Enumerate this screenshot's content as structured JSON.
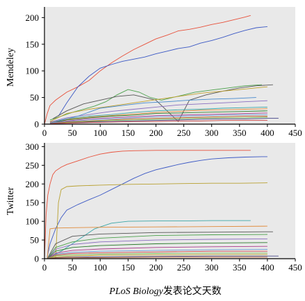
{
  "xlabel_italic": "PLoS Biology",
  "xlabel_rest": "发表论文天数",
  "chart_data": [
    {
      "type": "line",
      "ylabel": "Mendeley",
      "xlim": [
        0,
        450
      ],
      "ylim": [
        0,
        220
      ],
      "xticks": [
        0,
        50,
        100,
        150,
        200,
        250,
        300,
        350,
        400,
        450
      ],
      "yticks": [
        0,
        50,
        100,
        150,
        200
      ],
      "grid": false,
      "series": [
        {
          "color": "#e8503a",
          "x": [
            0,
            5,
            10,
            20,
            40,
            60,
            80,
            100,
            120,
            140,
            160,
            180,
            200,
            220,
            240,
            260,
            280,
            300,
            320,
            340,
            360,
            370
          ],
          "y": [
            0,
            20,
            35,
            45,
            60,
            70,
            82,
            100,
            115,
            128,
            140,
            150,
            160,
            167,
            175,
            178,
            182,
            187,
            191,
            196,
            201,
            204
          ]
        },
        {
          "color": "#3b58c4",
          "x": [
            25,
            40,
            60,
            80,
            100,
            120,
            140,
            160,
            180,
            200,
            220,
            240,
            260,
            280,
            300,
            320,
            340,
            360,
            380,
            400
          ],
          "y": [
            15,
            40,
            70,
            90,
            105,
            112,
            118,
            122,
            126,
            132,
            137,
            142,
            145,
            152,
            157,
            163,
            170,
            176,
            181,
            183
          ]
        },
        {
          "color": "#4aa04a",
          "x": [
            10,
            30,
            50,
            70,
            90,
            110,
            130,
            150,
            170,
            190,
            210,
            230,
            250,
            270,
            300,
            330,
            360,
            390
          ],
          "y": [
            8,
            15,
            22,
            28,
            34,
            42,
            55,
            65,
            60,
            50,
            45,
            50,
            55,
            60,
            64,
            68,
            72,
            74
          ]
        },
        {
          "color": "#555555",
          "x": [
            15,
            40,
            70,
            100,
            130,
            160,
            180,
            200,
            220,
            240,
            260,
            290,
            320,
            350,
            380,
            410
          ],
          "y": [
            10,
            25,
            38,
            45,
            52,
            55,
            50,
            45,
            25,
            5,
            45,
            55,
            62,
            68,
            72,
            74
          ]
        },
        {
          "color": "#c0a02a",
          "x": [
            10,
            40,
            80,
            120,
            160,
            200,
            240,
            280,
            320,
            360,
            400
          ],
          "y": [
            5,
            20,
            28,
            34,
            40,
            46,
            52,
            58,
            62,
            66,
            70
          ]
        },
        {
          "color": "#8a6ec0",
          "x": [
            10,
            40,
            80,
            120,
            160,
            200,
            240,
            280,
            320,
            360,
            400
          ],
          "y": [
            4,
            12,
            18,
            24,
            28,
            32,
            36,
            38,
            40,
            42,
            44
          ]
        },
        {
          "color": "#3aa6a6",
          "x": [
            10,
            40,
            80,
            120,
            160,
            200,
            240,
            280,
            320,
            360,
            400
          ],
          "y": [
            3,
            10,
            15,
            18,
            22,
            25,
            27,
            28,
            30,
            31,
            32
          ]
        },
        {
          "color": "#e08a3a",
          "x": [
            10,
            40,
            80,
            120,
            160,
            200,
            240,
            280,
            320,
            360,
            400
          ],
          "y": [
            3,
            9,
            13,
            16,
            19,
            22,
            24,
            26,
            27,
            28,
            29
          ]
        },
        {
          "color": "#2a7a2a",
          "x": [
            10,
            40,
            80,
            120,
            160,
            200,
            240,
            280,
            320,
            360,
            400
          ],
          "y": [
            2,
            8,
            12,
            15,
            17,
            20,
            21,
            22,
            23,
            24,
            25
          ]
        },
        {
          "color": "#aa3a8a",
          "x": [
            10,
            40,
            80,
            120,
            160,
            200,
            240,
            280,
            320,
            360,
            400
          ],
          "y": [
            2,
            6,
            10,
            12,
            14,
            16,
            17,
            18,
            19,
            20,
            21
          ]
        },
        {
          "color": "#6a9ad4",
          "x": [
            10,
            40,
            80,
            120,
            160,
            200,
            240,
            280,
            320,
            360,
            400
          ],
          "y": [
            2,
            5,
            8,
            10,
            12,
            14,
            15,
            16,
            17,
            18,
            18
          ]
        },
        {
          "color": "#b85a2a",
          "x": [
            10,
            40,
            80,
            120,
            160,
            200,
            240,
            280,
            320,
            360,
            400
          ],
          "y": [
            1,
            4,
            6,
            8,
            10,
            11,
            12,
            13,
            14,
            15,
            15
          ]
        },
        {
          "color": "#7ab84a",
          "x": [
            10,
            40,
            80,
            120,
            160,
            200,
            240,
            280,
            320,
            360,
            400
          ],
          "y": [
            1,
            3,
            5,
            7,
            8,
            9,
            10,
            11,
            12,
            12,
            13
          ]
        },
        {
          "color": "#444488",
          "x": [
            10,
            40,
            80,
            120,
            160,
            200,
            240,
            280,
            320,
            360,
            400,
            420
          ],
          "y": [
            1,
            2,
            4,
            5,
            6,
            7,
            8,
            9,
            10,
            10,
            11,
            11
          ]
        },
        {
          "color": "#cc4444",
          "x": [
            10,
            40,
            80,
            120,
            160,
            200,
            240,
            280,
            320,
            360,
            400
          ],
          "y": [
            1,
            2,
            3,
            4,
            5,
            5,
            6,
            6,
            7,
            7,
            7
          ]
        },
        {
          "color": "#4488cc",
          "x": [
            10,
            60,
            100,
            140,
            180,
            220,
            260,
            300,
            340,
            380
          ],
          "y": [
            2,
            15,
            30,
            35,
            40,
            42,
            45,
            47,
            48,
            50
          ]
        }
      ]
    },
    {
      "type": "line",
      "ylabel": "Twitter",
      "xlim": [
        0,
        450
      ],
      "ylim": [
        0,
        310
      ],
      "xticks": [
        0,
        50,
        100,
        150,
        200,
        250,
        300,
        350,
        400,
        450
      ],
      "yticks": [
        0,
        50,
        100,
        150,
        200,
        250,
        300
      ],
      "grid": false,
      "series": [
        {
          "color": "#e8503a",
          "x": [
            0,
            3,
            6,
            10,
            15,
            20,
            30,
            40,
            60,
            80,
            100,
            120,
            140,
            160,
            200,
            260,
            300,
            370
          ],
          "y": [
            0,
            120,
            170,
            200,
            225,
            235,
            245,
            252,
            262,
            272,
            280,
            285,
            288,
            289,
            290,
            290,
            290,
            290
          ]
        },
        {
          "color": "#3b58c4",
          "x": [
            5,
            10,
            20,
            30,
            40,
            60,
            80,
            100,
            120,
            140,
            160,
            180,
            200,
            220,
            240,
            260,
            280,
            300,
            330,
            360,
            390,
            400
          ],
          "y": [
            5,
            40,
            80,
            110,
            130,
            145,
            158,
            170,
            185,
            200,
            215,
            228,
            238,
            245,
            252,
            258,
            263,
            267,
            270,
            272,
            273,
            273
          ]
        },
        {
          "color": "#b8a030",
          "x": [
            20,
            25,
            30,
            40,
            60,
            100,
            150,
            200,
            250,
            300,
            350,
            400
          ],
          "y": [
            0,
            150,
            185,
            193,
            195,
            197,
            199,
            200,
            201,
            202,
            202,
            203
          ]
        },
        {
          "color": "#3aa6a6",
          "x": [
            10,
            30,
            60,
            90,
            120,
            150,
            200,
            250,
            300,
            350,
            370
          ],
          "y": [
            5,
            20,
            50,
            80,
            95,
            100,
            101,
            101,
            102,
            102,
            102
          ]
        },
        {
          "color": "#e08a3a",
          "x": [
            5,
            10,
            20,
            50,
            100,
            200,
            300,
            400
          ],
          "y": [
            0,
            80,
            82,
            83,
            84,
            85,
            86,
            87
          ]
        },
        {
          "color": "#555555",
          "x": [
            5,
            20,
            50,
            100,
            200,
            300,
            400,
            410
          ],
          "y": [
            0,
            40,
            60,
            66,
            70,
            71,
            72,
            72
          ]
        },
        {
          "color": "#4aa04a",
          "x": [
            5,
            20,
            50,
            100,
            200,
            300,
            400
          ],
          "y": [
            0,
            30,
            45,
            55,
            62,
            64,
            65
          ]
        },
        {
          "color": "#8a6ec0",
          "x": [
            5,
            20,
            50,
            100,
            200,
            300,
            400
          ],
          "y": [
            0,
            25,
            38,
            45,
            50,
            52,
            53
          ]
        },
        {
          "color": "#2a7a2a",
          "x": [
            5,
            20,
            50,
            100,
            200,
            300,
            400
          ],
          "y": [
            0,
            20,
            30,
            35,
            40,
            42,
            43
          ]
        },
        {
          "color": "#aa3a8a",
          "x": [
            5,
            20,
            50,
            100,
            200,
            300,
            400
          ],
          "y": [
            0,
            15,
            22,
            26,
            30,
            32,
            33
          ]
        },
        {
          "color": "#6a9ad4",
          "x": [
            5,
            20,
            50,
            100,
            200,
            300,
            400
          ],
          "y": [
            0,
            12,
            17,
            20,
            22,
            24,
            25
          ]
        },
        {
          "color": "#cc4444",
          "x": [
            5,
            20,
            50,
            100,
            200,
            300,
            400
          ],
          "y": [
            0,
            10,
            14,
            16,
            18,
            20,
            20
          ]
        },
        {
          "color": "#7ab84a",
          "x": [
            5,
            20,
            50,
            100,
            200,
            300,
            400
          ],
          "y": [
            0,
            8,
            10,
            12,
            14,
            15,
            15
          ]
        },
        {
          "color": "#c0a02a",
          "x": [
            5,
            20,
            50,
            100,
            200,
            300,
            400
          ],
          "y": [
            0,
            5,
            7,
            9,
            10,
            11,
            11
          ]
        },
        {
          "color": "#444488",
          "x": [
            5,
            20,
            50,
            100,
            200,
            300,
            400,
            420
          ],
          "y": [
            0,
            3,
            4,
            5,
            6,
            7,
            7,
            7
          ]
        },
        {
          "color": "#b85a2a",
          "x": [
            5,
            20,
            50,
            100,
            200,
            300,
            400
          ],
          "y": [
            0,
            2,
            3,
            3,
            4,
            4,
            4
          ]
        }
      ]
    }
  ]
}
